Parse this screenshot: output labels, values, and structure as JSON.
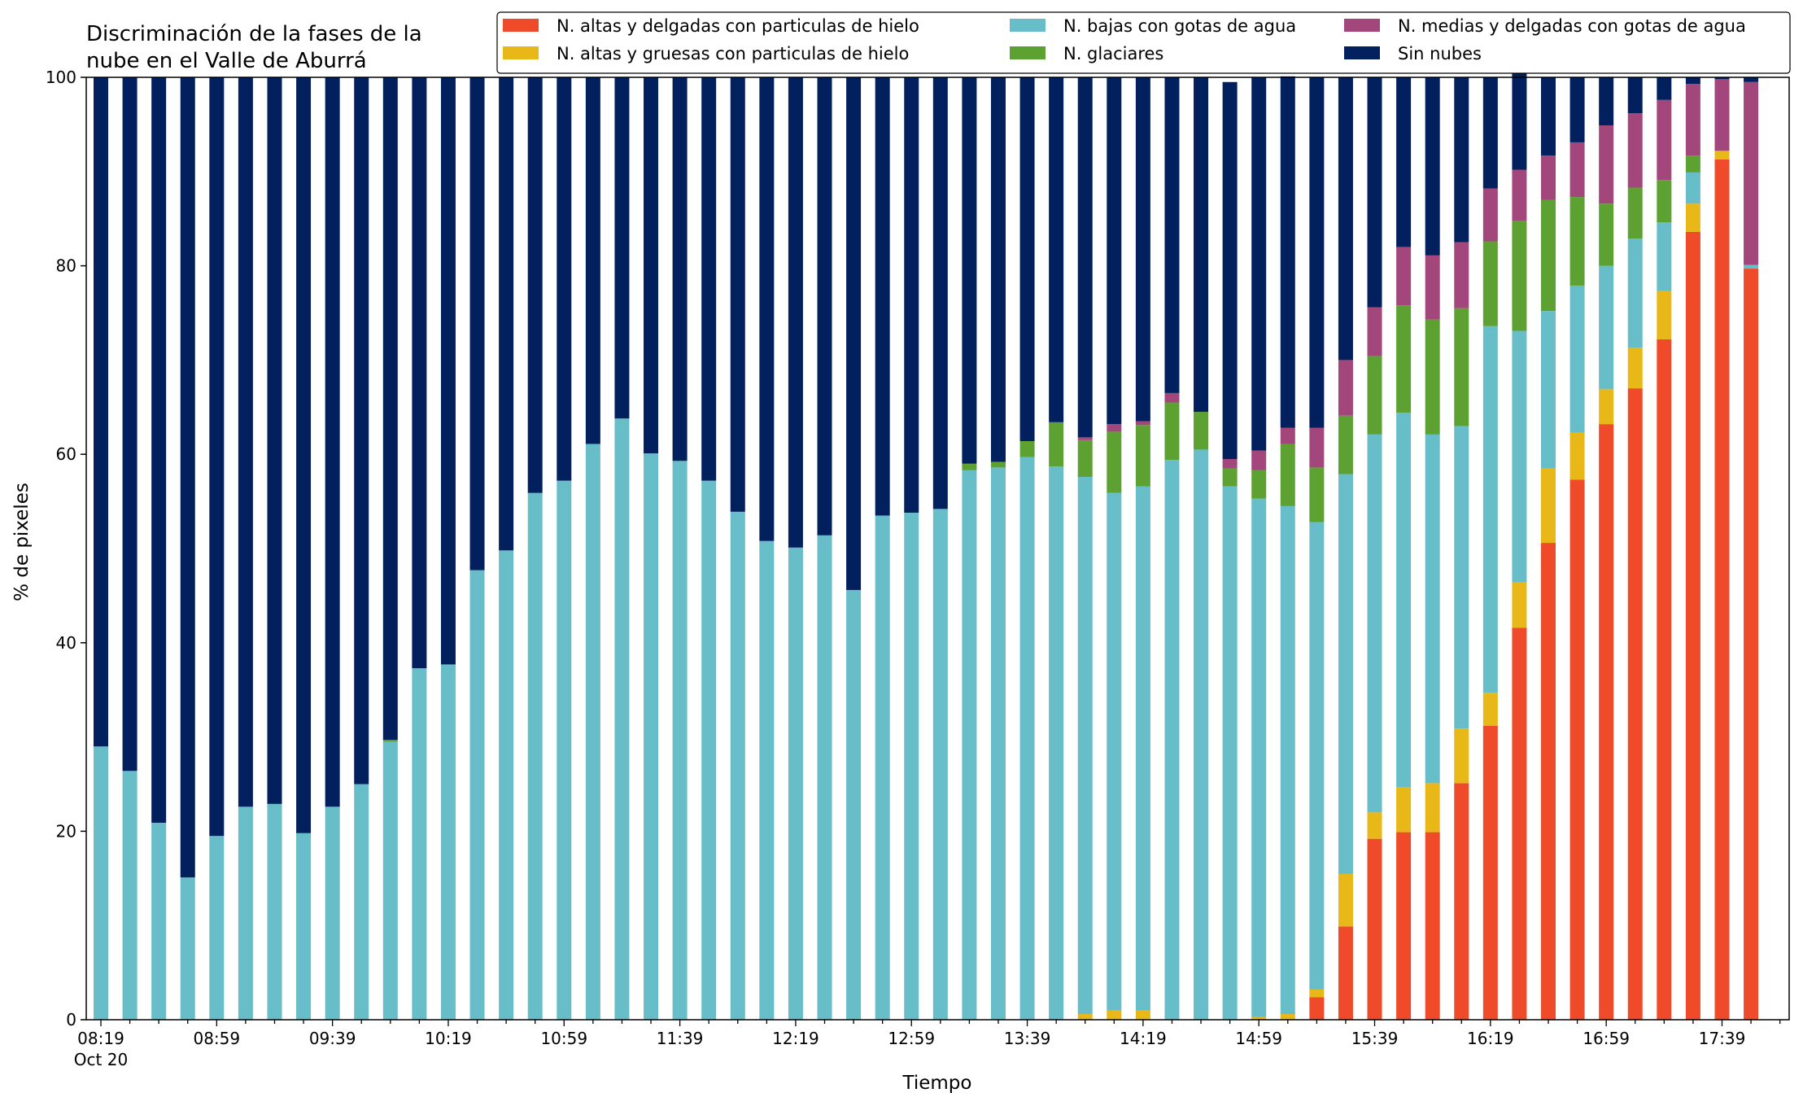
{
  "chart_data": {
    "type": "bar",
    "stacked": true,
    "title_lines": [
      "Discriminación de la fases de la",
      "nube en el Valle de Aburrá"
    ],
    "xlabel": "Tiempo",
    "ylabel": "% de pixeles",
    "ylim": [
      0,
      100
    ],
    "yticks": [
      "0",
      "20",
      "40",
      "60",
      "80",
      "100"
    ],
    "grid": false,
    "legend_placement": "top-right",
    "xtick_labels": [
      "08:19",
      "08:59",
      "09:39",
      "10:19",
      "10:59",
      "11:39",
      "12:19",
      "12:59",
      "13:39",
      "14:19",
      "14:59",
      "15:39",
      "16:19",
      "16:59",
      "17:39"
    ],
    "xtick_sublabel": "Oct 20",
    "series": [
      {
        "name": "N. altas y delgadas con particulas de hielo",
        "color": "#ef4b2a",
        "values": [
          0,
          0,
          0,
          0,
          0,
          0,
          0,
          0,
          0,
          0,
          0,
          0,
          0,
          0,
          0,
          0,
          0,
          0,
          0,
          0,
          0,
          0,
          0,
          0,
          0,
          0,
          0,
          0,
          0,
          0,
          0,
          0,
          0,
          0,
          0,
          0,
          0,
          0,
          0,
          0,
          0,
          0,
          2.4,
          9.9,
          19.2,
          19.9,
          19.9,
          25.1,
          31.2,
          41.6,
          50.6,
          57.3,
          63.2,
          67.0,
          72.2,
          83.6,
          91.3,
          79.7
        ]
      },
      {
        "name": "N. altas y gruesas con particulas de hielo",
        "color": "#e8b718",
        "values": [
          0,
          0,
          0,
          0,
          0,
          0,
          0,
          0,
          0,
          0,
          0,
          0,
          0,
          0,
          0,
          0,
          0,
          0,
          0,
          0,
          0,
          0,
          0,
          0,
          0,
          0,
          0,
          0,
          0,
          0,
          0,
          0,
          0,
          0,
          0.6,
          1.0,
          1.0,
          0,
          0,
          0,
          0.3,
          0.6,
          0.8,
          5.6,
          2.8,
          4.8,
          5.2,
          5.8,
          3.5,
          4.8,
          7.9,
          5.0,
          3.7,
          4.3,
          5.1,
          3.0,
          0.9,
          0
        ]
      },
      {
        "name": "N. bajas con gotas de agua",
        "color": "#67bdc8",
        "values": [
          29.0,
          26.4,
          20.9,
          15.1,
          19.5,
          22.6,
          22.9,
          19.8,
          22.6,
          25.0,
          29.5,
          37.3,
          37.7,
          47.7,
          49.8,
          55.9,
          57.2,
          61.1,
          63.8,
          60.1,
          59.3,
          57.2,
          53.9,
          50.8,
          50.1,
          51.4,
          45.6,
          53.5,
          53.8,
          54.2,
          58.3,
          58.6,
          59.7,
          58.7,
          57.0,
          54.9,
          55.6,
          59.4,
          60.5,
          56.6,
          55.0,
          53.9,
          49.6,
          42.4,
          40.1,
          39.7,
          37.0,
          32.1,
          38.9,
          26.7,
          16.7,
          15.6,
          13.1,
          11.6,
          7.3,
          3.3,
          0,
          0.4
        ]
      },
      {
        "name": "N. glaciares",
        "color": "#5ea133",
        "values": [
          0,
          0,
          0,
          0,
          0,
          0,
          0,
          0,
          0,
          0,
          0.2,
          0,
          0,
          0,
          0,
          0,
          0,
          0,
          0,
          0,
          0,
          0,
          0,
          0,
          0,
          0,
          0,
          0,
          0,
          0,
          0.7,
          0.6,
          1.7,
          4.7,
          3.9,
          6.5,
          6.5,
          6.1,
          4.0,
          1.9,
          3.0,
          6.6,
          5.8,
          6.2,
          8.3,
          11.4,
          12.2,
          12.5,
          9.0,
          11.7,
          11.8,
          9.4,
          6.6,
          5.4,
          4.5,
          1.8,
          0,
          0
        ]
      },
      {
        "name": "N. medias y delgadas con gotas de agua",
        "color": "#a3467c",
        "values": [
          0,
          0,
          0,
          0,
          0,
          0,
          0,
          0,
          0,
          0,
          0,
          0,
          0,
          0,
          0,
          0,
          0,
          0,
          0,
          0,
          0,
          0,
          0,
          0,
          0,
          0,
          0,
          0,
          0,
          0,
          0,
          0,
          0,
          0,
          0.3,
          0.8,
          0.4,
          1.0,
          0,
          1.0,
          2.1,
          1.7,
          4.2,
          5.9,
          5.2,
          6.2,
          6.8,
          7.0,
          5.6,
          5.4,
          4.7,
          5.8,
          8.3,
          7.9,
          8.5,
          7.6,
          7.6,
          19.4
        ]
      },
      {
        "name": "Sin nubes",
        "color": "#03205e",
        "values": [
          71.0,
          73.6,
          79.1,
          84.9,
          80.5,
          77.4,
          77.1,
          80.2,
          77.4,
          75.0,
          70.3,
          62.7,
          62.3,
          52.3,
          50.2,
          44.1,
          42.8,
          38.9,
          36.2,
          39.9,
          40.7,
          42.8,
          46.1,
          49.2,
          49.9,
          48.6,
          54.4,
          46.5,
          46.2,
          45.8,
          41.0,
          40.8,
          38.6,
          36.6,
          38.2,
          36.8,
          36.5,
          33.5,
          35.5,
          40.0,
          39.6,
          37.3,
          37.2,
          30.0,
          24.4,
          18.0,
          18.9,
          17.5,
          11.8,
          10.4,
          8.3,
          6.9,
          5.1,
          3.8,
          2.4,
          0.7,
          0.2,
          0.5
        ]
      }
    ]
  }
}
